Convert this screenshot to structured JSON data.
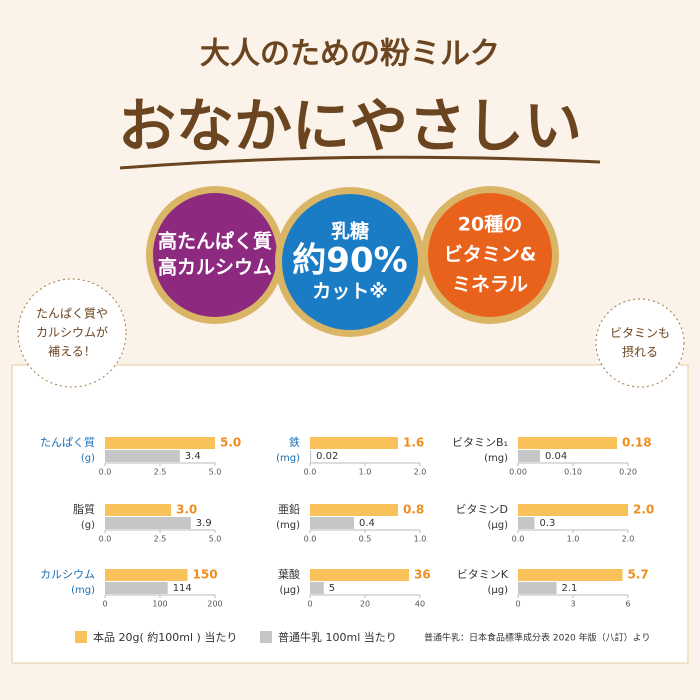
{
  "header": {
    "title": "大人のための粉ミルク",
    "headline": "おなかにやさしい"
  },
  "badges": [
    {
      "lines": [
        "高たんぱく質",
        "高カルシウム"
      ],
      "color": "#8d2a80"
    },
    {
      "lines": [
        "乳糖",
        "約90%",
        "カット※"
      ],
      "color": "#1b7cc6"
    },
    {
      "lines": [
        "20種の",
        "ビタミン&",
        "ミネラル"
      ],
      "color": "#e8621b"
    }
  ],
  "bubbles": [
    {
      "lines": [
        "たんぱく質や",
        "カルシウムが",
        "補える！"
      ]
    },
    {
      "lines": [
        "ビタミンも",
        "摂れる"
      ]
    }
  ],
  "legend": {
    "series": [
      {
        "name": "本品 20g( 約100ml ) 当たり",
        "color": "#f8c15a"
      },
      {
        "name": "普通牛乳 100ml 当たり",
        "color": "#c6c6c6"
      }
    ]
  },
  "footnote": "普通牛乳：日本食品標準成分表 2020 年版（八訂）より",
  "chart_data": [
    {
      "type": "bar",
      "title": "たんぱく質",
      "unit": "(g)",
      "title_color": "#1b6fb5",
      "values": [
        5.0,
        3.4
      ],
      "value_labels": [
        "5.0",
        "3.4"
      ],
      "xlim": [
        0,
        5
      ],
      "xticks": [
        {
          "value": 0,
          "label": "0.0"
        },
        2.5,
        {
          "value": 5,
          "label": "5.0"
        }
      ]
    },
    {
      "type": "bar",
      "title": "鉄",
      "unit": "(mg)",
      "title_color": "#1b6fb5",
      "values": [
        1.6,
        0.02
      ],
      "value_labels": [
        "1.6",
        "0.02"
      ],
      "xlim": [
        0,
        2
      ],
      "xticks": [
        {
          "value": 0,
          "label": "0.0"
        },
        {
          "value": 1,
          "label": "1.0"
        },
        {
          "value": 2,
          "label": "2.0"
        }
      ]
    },
    {
      "type": "bar",
      "title": "ビタミンB₁",
      "unit": "(mg)",
      "title_color": "#333333",
      "values": [
        0.18,
        0.04
      ],
      "value_labels": [
        "0.18",
        "0.04"
      ],
      "xlim": [
        0,
        0.2
      ],
      "xticks": [
        {
          "value": 0,
          "label": "0.00"
        },
        {
          "value": 0.1,
          "label": "0.10"
        },
        {
          "value": 0.2,
          "label": "0.20"
        }
      ]
    },
    {
      "type": "bar",
      "title": "脂質",
      "unit": "(g)",
      "title_color": "#333333",
      "values": [
        3.0,
        3.9
      ],
      "value_labels": [
        "3.0",
        "3.9"
      ],
      "xlim": [
        0,
        5
      ],
      "xticks": [
        {
          "value": 0,
          "label": "0.0"
        },
        2.5,
        {
          "value": 5,
          "label": "5.0"
        }
      ]
    },
    {
      "type": "bar",
      "title": "亜鉛",
      "unit": "(mg)",
      "title_color": "#333333",
      "values": [
        0.8,
        0.4
      ],
      "value_labels": [
        "0.8",
        "0.4"
      ],
      "xlim": [
        0,
        1
      ],
      "xticks": [
        {
          "value": 0,
          "label": "0.0"
        },
        0.5,
        {
          "value": 1,
          "label": "1.0"
        }
      ]
    },
    {
      "type": "bar",
      "title": "ビタミンD",
      "unit": "(μg)",
      "title_color": "#333333",
      "values": [
        2.0,
        0.3
      ],
      "value_labels": [
        "2.0",
        "0.3"
      ],
      "xlim": [
        0,
        2
      ],
      "xticks": [
        {
          "value": 0,
          "label": "0.0"
        },
        {
          "value": 1,
          "label": "1.0"
        },
        {
          "value": 2,
          "label": "2.0"
        }
      ]
    },
    {
      "type": "bar",
      "title": "カルシウム",
      "unit": "(mg)",
      "title_color": "#1b6fb5",
      "values": [
        150,
        114
      ],
      "value_labels": [
        "150",
        "114"
      ],
      "xlim": [
        0,
        200
      ],
      "xticks": [
        0,
        100,
        200
      ]
    },
    {
      "type": "bar",
      "title": "葉酸",
      "unit": "(μg)",
      "title_color": "#333333",
      "values": [
        36,
        5
      ],
      "value_labels": [
        "36",
        "5"
      ],
      "xlim": [
        0,
        40
      ],
      "xticks": [
        0,
        20,
        40
      ]
    },
    {
      "type": "bar",
      "title": "ビタミンK",
      "unit": "(μg)",
      "title_color": "#333333",
      "values": [
        5.7,
        2.1
      ],
      "value_labels": [
        "5.7",
        "2.1"
      ],
      "xlim": [
        0,
        6
      ],
      "xticks": [
        0,
        3,
        6
      ]
    }
  ]
}
